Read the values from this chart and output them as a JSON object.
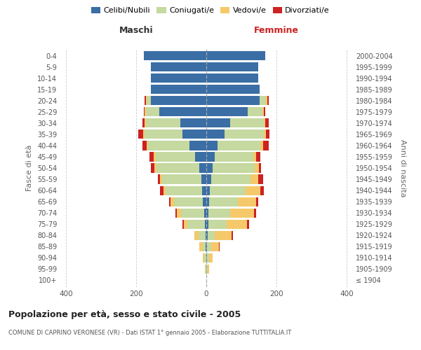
{
  "age_groups": [
    "100+",
    "95-99",
    "90-94",
    "85-89",
    "80-84",
    "75-79",
    "70-74",
    "65-69",
    "60-64",
    "55-59",
    "50-54",
    "45-49",
    "40-44",
    "35-39",
    "30-34",
    "25-29",
    "20-24",
    "15-19",
    "10-14",
    "5-9",
    "0-4"
  ],
  "birth_years": [
    "≤ 1904",
    "1905-1909",
    "1910-1914",
    "1915-1919",
    "1920-1924",
    "1925-1929",
    "1930-1934",
    "1935-1939",
    "1940-1944",
    "1945-1949",
    "1950-1954",
    "1955-1959",
    "1960-1964",
    "1965-1969",
    "1970-1974",
    "1975-1979",
    "1980-1984",
    "1985-1989",
    "1990-1994",
    "1995-1999",
    "2000-2004"
  ],
  "maschi": {
    "celibi": [
      0,
      0,
      1,
      2,
      3,
      5,
      7,
      10,
      12,
      15,
      20,
      32,
      48,
      68,
      75,
      135,
      158,
      158,
      158,
      158,
      178
    ],
    "coniugati": [
      0,
      2,
      5,
      9,
      20,
      50,
      65,
      82,
      105,
      112,
      122,
      112,
      118,
      108,
      98,
      38,
      12,
      0,
      0,
      0,
      0
    ],
    "vedovi": [
      0,
      2,
      4,
      9,
      12,
      10,
      12,
      10,
      6,
      6,
      6,
      6,
      4,
      4,
      3,
      3,
      3,
      0,
      0,
      0,
      0
    ],
    "divorziati": [
      0,
      0,
      0,
      0,
      0,
      3,
      5,
      4,
      10,
      6,
      10,
      12,
      12,
      14,
      6,
      3,
      3,
      0,
      0,
      0,
      0
    ]
  },
  "femmine": {
    "nubili": [
      0,
      0,
      2,
      2,
      3,
      5,
      5,
      7,
      10,
      14,
      17,
      24,
      32,
      52,
      67,
      118,
      152,
      152,
      147,
      147,
      167
    ],
    "coniugate": [
      0,
      3,
      6,
      11,
      20,
      52,
      62,
      82,
      102,
      112,
      120,
      110,
      122,
      112,
      97,
      42,
      17,
      0,
      0,
      0,
      0
    ],
    "vedove": [
      0,
      5,
      10,
      22,
      48,
      58,
      68,
      52,
      42,
      22,
      12,
      7,
      7,
      5,
      4,
      4,
      5,
      0,
      0,
      0,
      0
    ],
    "divorziate": [
      0,
      0,
      0,
      3,
      5,
      6,
      6,
      6,
      10,
      14,
      6,
      12,
      17,
      10,
      10,
      3,
      3,
      0,
      0,
      0,
      0
    ]
  },
  "colors": {
    "celibi_nubili": "#3a6ea5",
    "coniugati": "#c5d9a0",
    "vedovi": "#f5c96a",
    "divorziati": "#cc2222"
  },
  "xlim": 420,
  "title": "Popolazione per età, sesso e stato civile - 2005",
  "subtitle": "COMUNE DI CAPRINO VERONESE (VR) - Dati ISTAT 1° gennaio 2005 - Elaborazione TUTTITALIA.IT",
  "ylabel_left": "Fasce di età",
  "ylabel_right": "Anni di nascita",
  "xlabel_maschi": "Maschi",
  "xlabel_femmine": "Femmine",
  "background_color": "#ffffff",
  "grid_color": "#cccccc",
  "legend_labels": [
    "Celibi/Nubili",
    "Coniugati/e",
    "Vedovi/e",
    "Divorziati/e"
  ]
}
